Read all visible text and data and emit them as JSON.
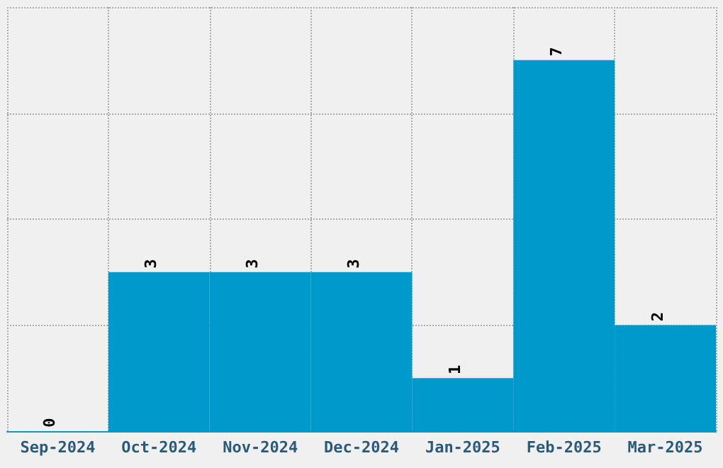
{
  "chart_data": {
    "type": "bar",
    "categories": [
      "Sep-2024",
      "Oct-2024",
      "Nov-2024",
      "Dec-2024",
      "Jan-2025",
      "Feb-2025",
      "Mar-2025"
    ],
    "values": [
      0,
      3,
      3,
      3,
      1,
      7,
      2
    ],
    "color": "#0099cc",
    "ylim": [
      0,
      8
    ],
    "yticks": [
      {
        "value": 0,
        "label": null
      },
      {
        "value": 2,
        "label": null
      },
      {
        "value": 4,
        "label": null
      },
      {
        "value": 6,
        "label": null
      },
      {
        "value": 8,
        "label": null
      }
    ],
    "grid": true,
    "data_labels": true,
    "tick_labels": "x"
  }
}
